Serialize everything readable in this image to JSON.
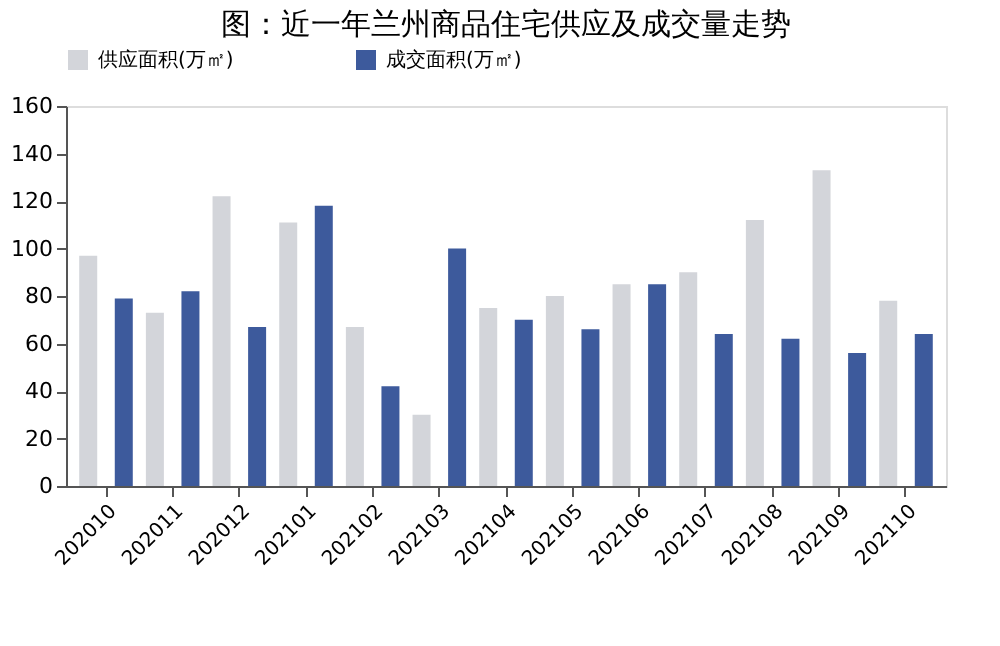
{
  "chart_data": {
    "type": "bar",
    "title": "图：近一年兰州商品住宅供应及成交量走势",
    "categories": [
      "202010",
      "202011",
      "202012",
      "202101",
      "202102",
      "202103",
      "202104",
      "202105",
      "202106",
      "202107",
      "202108",
      "202109",
      "202110"
    ],
    "series": [
      {
        "name": "供应面积(万㎡)",
        "color": "#d3d5da",
        "values": [
          97,
          73,
          122,
          111,
          67,
          30,
          75,
          80,
          85,
          90,
          112,
          133,
          78
        ]
      },
      {
        "name": "成交面积(万㎡)",
        "color": "#3d5a9c",
        "values": [
          79,
          82,
          67,
          118,
          42,
          100,
          70,
          66,
          85,
          64,
          62,
          56,
          64
        ]
      }
    ],
    "ylim": [
      0,
      160
    ],
    "yticks": [
      0,
      20,
      40,
      60,
      80,
      100,
      120,
      140,
      160
    ],
    "grid": false,
    "legend": "top"
  }
}
